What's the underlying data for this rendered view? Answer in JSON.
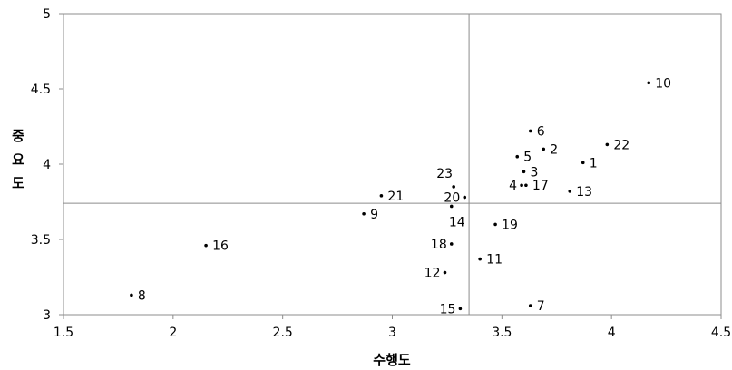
{
  "chart_data": {
    "type": "scatter",
    "title": "",
    "xlabel": "수행도",
    "ylabel": "중요도",
    "xlim": [
      1.5,
      4.5
    ],
    "ylim": [
      3,
      5
    ],
    "xticks": [
      "1.5",
      "2",
      "2.5",
      "3",
      "3.5",
      "4",
      "4.5"
    ],
    "yticks": [
      "3",
      "3.5",
      "4",
      "4.5",
      "5"
    ],
    "reference_lines": {
      "x": 3.35,
      "y": 3.74
    },
    "grid": false,
    "points": [
      {
        "label": "1",
        "x": 3.87,
        "y": 4.01
      },
      {
        "label": "2",
        "x": 3.69,
        "y": 4.1
      },
      {
        "label": "3",
        "x": 3.6,
        "y": 3.95
      },
      {
        "label": "4",
        "x": 3.59,
        "y": 3.86
      },
      {
        "label": "5",
        "x": 3.57,
        "y": 4.05
      },
      {
        "label": "6",
        "x": 3.63,
        "y": 4.22
      },
      {
        "label": "7",
        "x": 3.63,
        "y": 3.06
      },
      {
        "label": "8",
        "x": 1.81,
        "y": 3.13
      },
      {
        "label": "9",
        "x": 2.87,
        "y": 3.67
      },
      {
        "label": "10",
        "x": 4.17,
        "y": 4.54
      },
      {
        "label": "11",
        "x": 3.4,
        "y": 3.37
      },
      {
        "label": "12",
        "x": 3.24,
        "y": 3.28
      },
      {
        "label": "13",
        "x": 3.81,
        "y": 3.82
      },
      {
        "label": "14",
        "x": 3.27,
        "y": 3.72
      },
      {
        "label": "15",
        "x": 3.31,
        "y": 3.04
      },
      {
        "label": "16",
        "x": 2.15,
        "y": 3.46
      },
      {
        "label": "17",
        "x": 3.61,
        "y": 3.86
      },
      {
        "label": "18",
        "x": 3.27,
        "y": 3.47
      },
      {
        "label": "19",
        "x": 3.47,
        "y": 3.6
      },
      {
        "label": "20",
        "x": 3.33,
        "y": 3.78
      },
      {
        "label": "21",
        "x": 2.95,
        "y": 3.79
      },
      {
        "label": "22",
        "x": 3.98,
        "y": 4.13
      },
      {
        "label": "23",
        "x": 3.28,
        "y": 3.85
      }
    ]
  }
}
